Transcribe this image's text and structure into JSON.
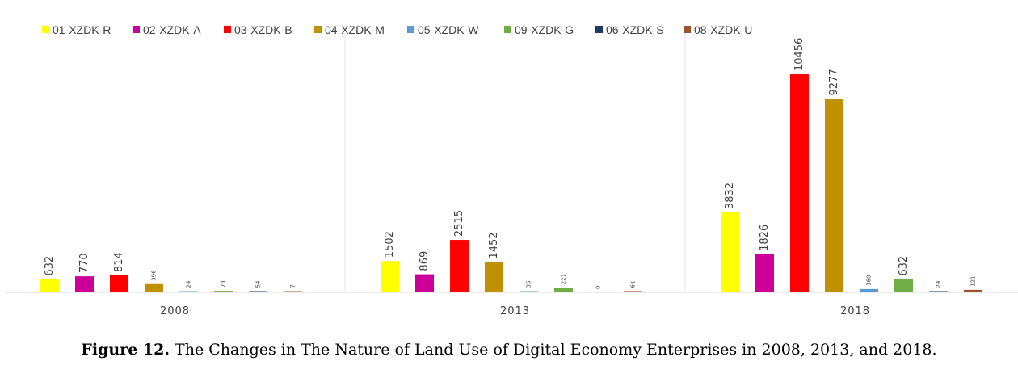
{
  "chart_data": {
    "type": "bar",
    "categories": [
      "2008",
      "2013",
      "2018"
    ],
    "series": [
      {
        "name": "01-XZDK-R",
        "color": "#FFFF00",
        "values": [
          632,
          1502,
          3832
        ]
      },
      {
        "name": "02-XZDK-A",
        "color": "#CC0099",
        "values": [
          770,
          869,
          1826
        ]
      },
      {
        "name": "03-XZDK-B",
        "color": "#FF0000",
        "values": [
          814,
          2515,
          10456
        ]
      },
      {
        "name": "04-XZDK-M",
        "color": "#BF9000",
        "values": [
          396,
          1452,
          9277
        ]
      },
      {
        "name": "05-XZDK-W",
        "color": "#5B9BD5",
        "values": [
          24,
          35,
          160
        ]
      },
      {
        "name": "09-XZDK-G",
        "color": "#70AD47",
        "values": [
          73,
          221,
          632
        ]
      },
      {
        "name": "06-XZDK-S",
        "color": "#1F3864",
        "values": [
          54,
          0,
          24
        ]
      },
      {
        "name": "08-XZDK-U",
        "color": "#A0522D",
        "values": [
          7,
          61,
          121
        ]
      }
    ],
    "ylim": [
      0,
      11000
    ],
    "legend_position": "top-left",
    "grid": false
  },
  "caption": {
    "label": "Figure 12.",
    "text": " The Changes in The Nature of Land Use of Digital Economy Enterprises in 2008, 2013, and 2018."
  }
}
